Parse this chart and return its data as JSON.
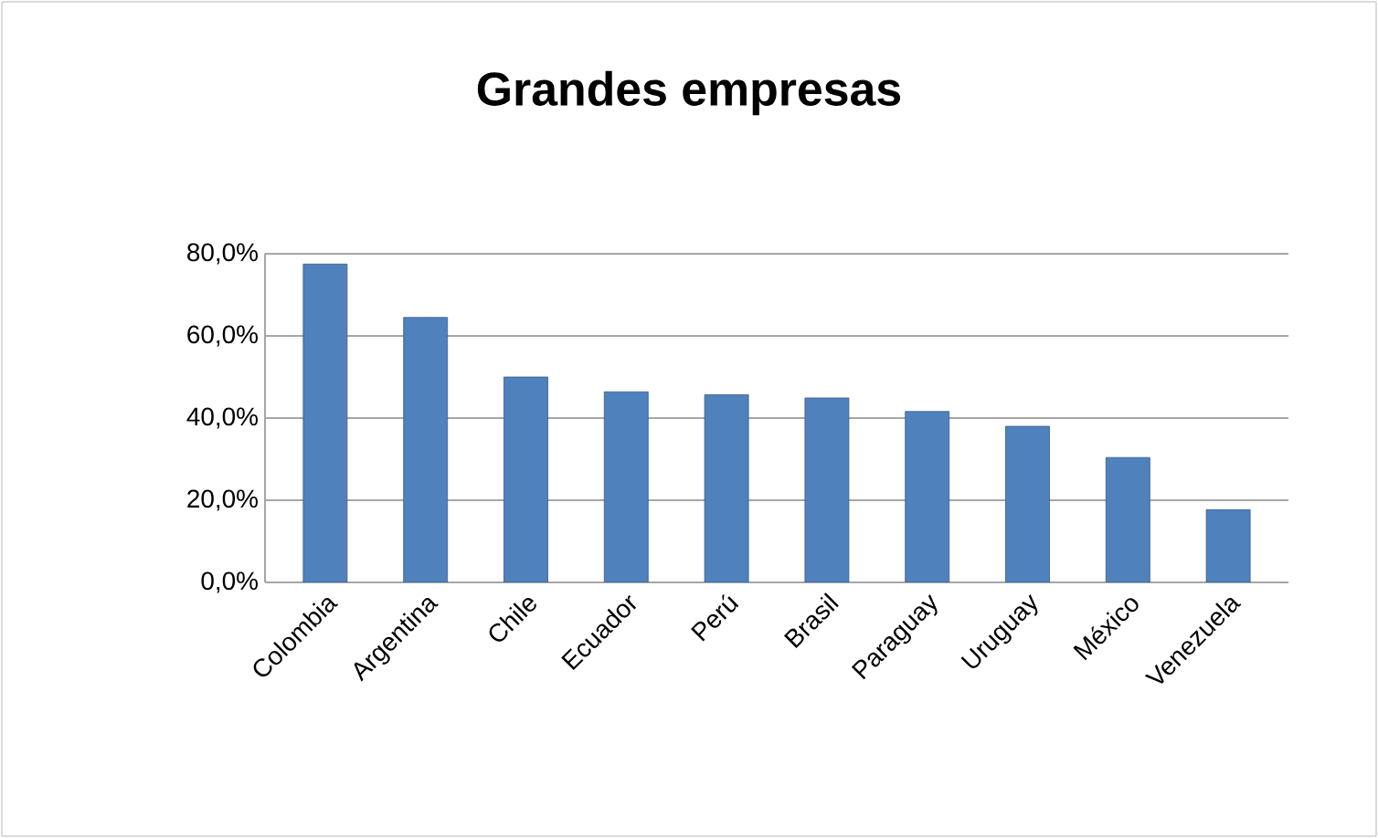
{
  "chart_data": {
    "type": "bar",
    "title": "Grandes empresas",
    "categories": [
      "Colombia",
      "Argentina",
      "Chile",
      "Ecuador",
      "Perú",
      "Brasil",
      "Paraguay",
      "Uruguay",
      "México",
      "Venezuela"
    ],
    "values": [
      77.5,
      64.5,
      50.0,
      46.4,
      45.7,
      44.9,
      41.6,
      38.0,
      30.4,
      17.7
    ],
    "color": "#4f81bd",
    "ylim": [
      0,
      80
    ],
    "yticks": [
      {
        "value": 0,
        "label": "0,0%"
      },
      {
        "value": 20,
        "label": "20,0%"
      },
      {
        "value": 40,
        "label": "40,0%"
      },
      {
        "value": 60,
        "label": "60,0%"
      },
      {
        "value": 80,
        "label": "80,0%"
      }
    ],
    "grid": "y"
  }
}
